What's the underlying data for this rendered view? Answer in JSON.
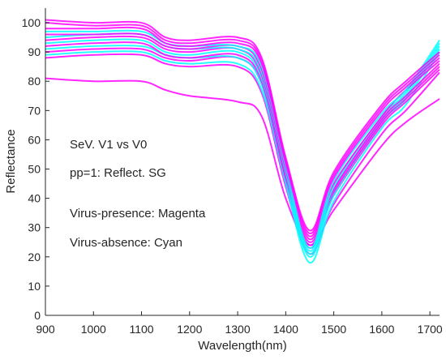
{
  "chart_data": {
    "type": "line",
    "xlabel": "Wavelength(nm)",
    "ylabel": "Reflectance",
    "xlim": [
      900,
      1720
    ],
    "ylim": [
      0,
      105
    ],
    "xticks": [
      900,
      1000,
      1100,
      1200,
      1300,
      1400,
      1500,
      1600,
      1700
    ],
    "yticks": [
      0,
      10,
      20,
      30,
      40,
      50,
      60,
      70,
      80,
      90,
      100
    ],
    "grid": false,
    "annotations": [
      "SeV. V1 vs V0",
      "pp=1: Reflect. SG",
      "Virus-presence: Magenta",
      "Virus-absence:  Cyan"
    ],
    "colors": {
      "magenta": "#ff00ff",
      "cyan": "#00ffff",
      "axis": "#262626"
    },
    "series": [
      {
        "color": "#ff00ff",
        "x": [
          900,
          1000,
          1100,
          1150,
          1200,
          1300,
          1350,
          1400,
          1450,
          1500,
          1600,
          1650,
          1720
        ],
        "y": [
          81,
          80,
          80,
          77,
          75,
          73,
          68,
          40,
          24,
          36,
          58,
          66,
          74
        ]
      },
      {
        "color": "#ff00ff",
        "x": [
          900,
          1000,
          1100,
          1150,
          1200,
          1300,
          1350,
          1400,
          1450,
          1500,
          1600,
          1650,
          1720
        ],
        "y": [
          88,
          89,
          89,
          86,
          85,
          85,
          76,
          44,
          21,
          38,
          62,
          70,
          83
        ]
      },
      {
        "color": "#00ffff",
        "x": [
          900,
          1000,
          1100,
          1150,
          1200,
          1300,
          1350,
          1400,
          1450,
          1500,
          1600,
          1650,
          1720
        ],
        "y": [
          89,
          90,
          90,
          87,
          86,
          86,
          77,
          45,
          18,
          39,
          64,
          72,
          90
        ]
      },
      {
        "color": "#ff00ff",
        "x": [
          900,
          1000,
          1100,
          1150,
          1200,
          1300,
          1350,
          1400,
          1450,
          1500,
          1600,
          1650,
          1720
        ],
        "y": [
          90,
          91,
          91,
          88,
          87,
          88,
          79,
          46,
          23,
          41,
          65,
          73,
          84
        ]
      },
      {
        "color": "#00ffff",
        "x": [
          900,
          1000,
          1100,
          1150,
          1200,
          1300,
          1350,
          1400,
          1450,
          1500,
          1600,
          1650,
          1720
        ],
        "y": [
          91,
          92,
          92,
          89,
          88,
          88,
          79,
          46,
          20,
          41,
          66,
          74,
          91
        ]
      },
      {
        "color": "#ff00ff",
        "x": [
          900,
          1000,
          1100,
          1150,
          1200,
          1300,
          1350,
          1400,
          1450,
          1500,
          1600,
          1650,
          1720
        ],
        "y": [
          92,
          93,
          93,
          89,
          88,
          89,
          80,
          47,
          24,
          42,
          66,
          74,
          85
        ]
      },
      {
        "color": "#00ffff",
        "x": [
          900,
          1000,
          1100,
          1150,
          1200,
          1300,
          1350,
          1400,
          1450,
          1500,
          1600,
          1650,
          1720
        ],
        "y": [
          93,
          94,
          94,
          90,
          89,
          90,
          81,
          48,
          21,
          43,
          67,
          75,
          92
        ]
      },
      {
        "color": "#ff00ff",
        "x": [
          900,
          1000,
          1100,
          1150,
          1200,
          1300,
          1350,
          1400,
          1450,
          1500,
          1600,
          1650,
          1720
        ],
        "y": [
          94,
          95,
          95,
          91,
          90,
          91,
          82,
          48,
          25,
          43,
          67,
          75,
          86
        ]
      },
      {
        "color": "#00ffff",
        "x": [
          900,
          1000,
          1100,
          1150,
          1200,
          1300,
          1350,
          1400,
          1450,
          1500,
          1600,
          1650,
          1720
        ],
        "y": [
          95,
          96,
          96,
          92,
          91,
          91,
          83,
          49,
          22,
          44,
          68,
          76,
          93
        ]
      },
      {
        "color": "#ff00ff",
        "x": [
          900,
          1000,
          1100,
          1150,
          1200,
          1300,
          1350,
          1400,
          1450,
          1500,
          1600,
          1650,
          1720
        ],
        "y": [
          96,
          96,
          96,
          92,
          91,
          92,
          84,
          50,
          26,
          45,
          68,
          77,
          87
        ]
      },
      {
        "color": "#00ffff",
        "x": [
          900,
          1000,
          1100,
          1150,
          1200,
          1300,
          1350,
          1400,
          1450,
          1500,
          1600,
          1650,
          1720
        ],
        "y": [
          97,
          97,
          97,
          93,
          92,
          92,
          85,
          51,
          23,
          46,
          69,
          77,
          94
        ]
      },
      {
        "color": "#ff00ff",
        "x": [
          900,
          1000,
          1100,
          1150,
          1200,
          1300,
          1350,
          1400,
          1450,
          1500,
          1600,
          1650,
          1720
        ],
        "y": [
          98,
          98,
          98,
          93,
          92,
          93,
          86,
          52,
          27,
          47,
          70,
          78,
          88
        ]
      },
      {
        "color": "#ff00ff",
        "x": [
          900,
          1000,
          1100,
          1150,
          1200,
          1300,
          1350,
          1400,
          1450,
          1500,
          1600,
          1650,
          1720
        ],
        "y": [
          100,
          99,
          99,
          94,
          93,
          94,
          87,
          53,
          28,
          48,
          71,
          79,
          89
        ]
      },
      {
        "color": "#ff00ff",
        "x": [
          900,
          1000,
          1100,
          1150,
          1200,
          1300,
          1350,
          1400,
          1450,
          1500,
          1600,
          1650,
          1720
        ],
        "y": [
          101,
          100,
          100,
          95,
          94,
          95,
          88,
          54,
          29,
          49,
          72,
          80,
          90
        ]
      }
    ]
  }
}
